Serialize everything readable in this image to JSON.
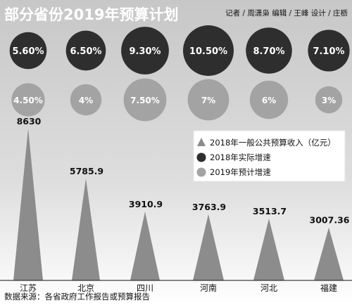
{
  "title": "部分省份2019年预算计划",
  "credits": "记者 / 周潇枭   编辑 / 王峰   设计 / 庄枥",
  "source": "数据来源：各省政府工作报告或预算报告",
  "colors": {
    "background_top": "#c7c7c7",
    "background_bottom": "#ffffff",
    "title": "#ffffff",
    "dark_circle": "#2e2e2e",
    "light_circle": "#a3a3a3",
    "triangle": "#8c8c8c",
    "text_dark": "#111111",
    "text_white": "#ffffff"
  },
  "chart_data": {
    "type": "bar",
    "categories": [
      "江苏",
      "北京",
      "四川",
      "河南",
      "河北",
      "福建"
    ],
    "series": [
      {
        "name": "2018年一般公共预算收入（亿元）",
        "marker": "triangle",
        "values": [
          8630,
          5785.9,
          3910.9,
          3763.9,
          3513.7,
          3007.36
        ],
        "labels": [
          "8630",
          "5785.9",
          "3910.9",
          "3763.9",
          "3513.7",
          "3007.36"
        ]
      },
      {
        "name": "2018年实际增速",
        "marker": "dark-circle",
        "values": [
          5.6,
          6.5,
          9.3,
          10.5,
          8.7,
          7.1
        ],
        "labels": [
          "5.60%",
          "6.50%",
          "9.30%",
          "10.50%",
          "8.70%",
          "7.10%"
        ]
      },
      {
        "name": "2019年预计增速",
        "marker": "light-circle",
        "values": [
          4.5,
          4,
          7.5,
          7,
          6,
          3
        ],
        "labels": [
          "4.50%",
          "4%",
          "7.50%",
          "7%",
          "6%",
          "3%"
        ]
      }
    ],
    "legend_position": "right"
  }
}
